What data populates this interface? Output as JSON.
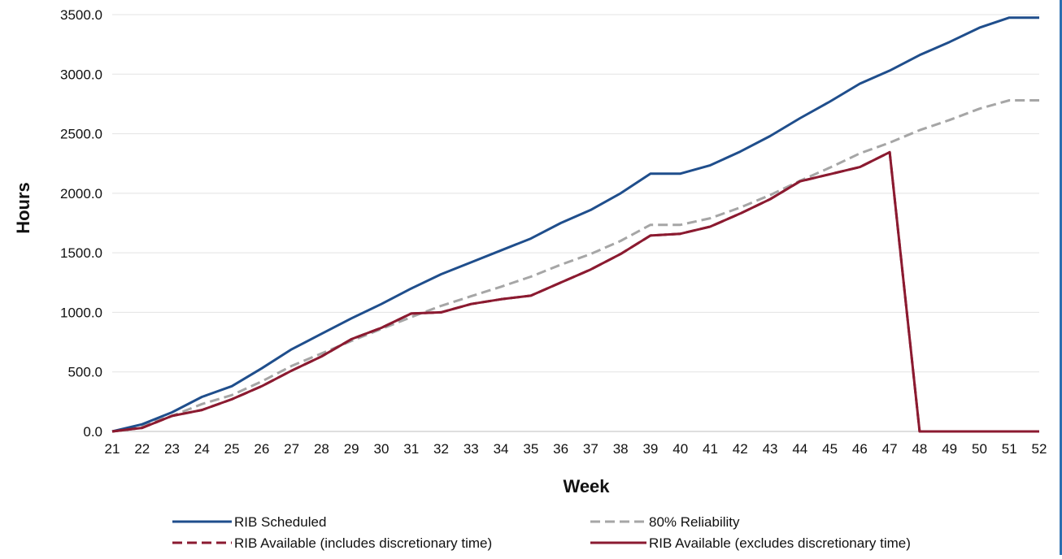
{
  "chart_data": {
    "type": "line",
    "title": "",
    "xlabel": "Week",
    "ylabel": "Hours",
    "x": [
      21,
      22,
      23,
      24,
      25,
      26,
      27,
      28,
      29,
      30,
      31,
      32,
      33,
      34,
      35,
      36,
      37,
      38,
      39,
      40,
      41,
      42,
      43,
      44,
      45,
      46,
      47,
      48,
      49,
      50,
      51,
      52
    ],
    "xlim": [
      21,
      52
    ],
    "ylim": [
      0,
      3500
    ],
    "yticks": [
      0,
      500,
      1000,
      1500,
      2000,
      2500,
      3000,
      3500
    ],
    "ytick_labels": [
      "0.0",
      "500.0",
      "1000.0",
      "1500.0",
      "2000.0",
      "2500.0",
      "3000.0",
      "3500.0"
    ],
    "grid": "horizontal",
    "legend_position": "bottom",
    "series": [
      {
        "name": "RIB Scheduled",
        "color": "#1f4e8c",
        "dash": "solid",
        "values": [
          0,
          60,
          160,
          290,
          380,
          530,
          690,
          820,
          950,
          1070,
          1200,
          1320,
          1420,
          1520,
          1620,
          1750,
          1860,
          2000,
          2165,
          2165,
          2235,
          2350,
          2480,
          2630,
          2770,
          2920,
          3030,
          3160,
          3270,
          3390,
          3475,
          3475
        ]
      },
      {
        "name": "80% Reliability",
        "color": "#a6a6a6",
        "dash": "dashed",
        "values": [
          0,
          50,
          130,
          230,
          305,
          420,
          550,
          655,
          760,
          860,
          960,
          1055,
          1135,
          1215,
          1300,
          1400,
          1490,
          1600,
          1735,
          1735,
          1790,
          1880,
          1985,
          2105,
          2215,
          2335,
          2425,
          2530,
          2615,
          2710,
          2780,
          2780
        ]
      },
      {
        "name": "RIB Available (includes discretionary time)",
        "color": "#8b1a30",
        "dash": "dashed",
        "values": [
          0,
          30,
          130,
          180,
          270,
          380,
          510,
          630,
          775,
          870,
          990,
          1000,
          1070,
          1110,
          1140,
          1250,
          1360,
          1490,
          1645,
          1660,
          1720,
          1830,
          1950,
          2100,
          2160,
          2220,
          2345,
          0,
          0,
          0,
          0,
          0
        ]
      },
      {
        "name": "RIB Available (excludes discretionary time)",
        "color": "#8b1a30",
        "dash": "solid",
        "values": [
          0,
          30,
          130,
          180,
          270,
          380,
          510,
          630,
          775,
          870,
          990,
          1000,
          1070,
          1110,
          1140,
          1250,
          1360,
          1490,
          1645,
          1660,
          1720,
          1830,
          1950,
          2100,
          2160,
          2220,
          2345,
          0,
          0,
          0,
          0,
          0
        ]
      }
    ]
  }
}
